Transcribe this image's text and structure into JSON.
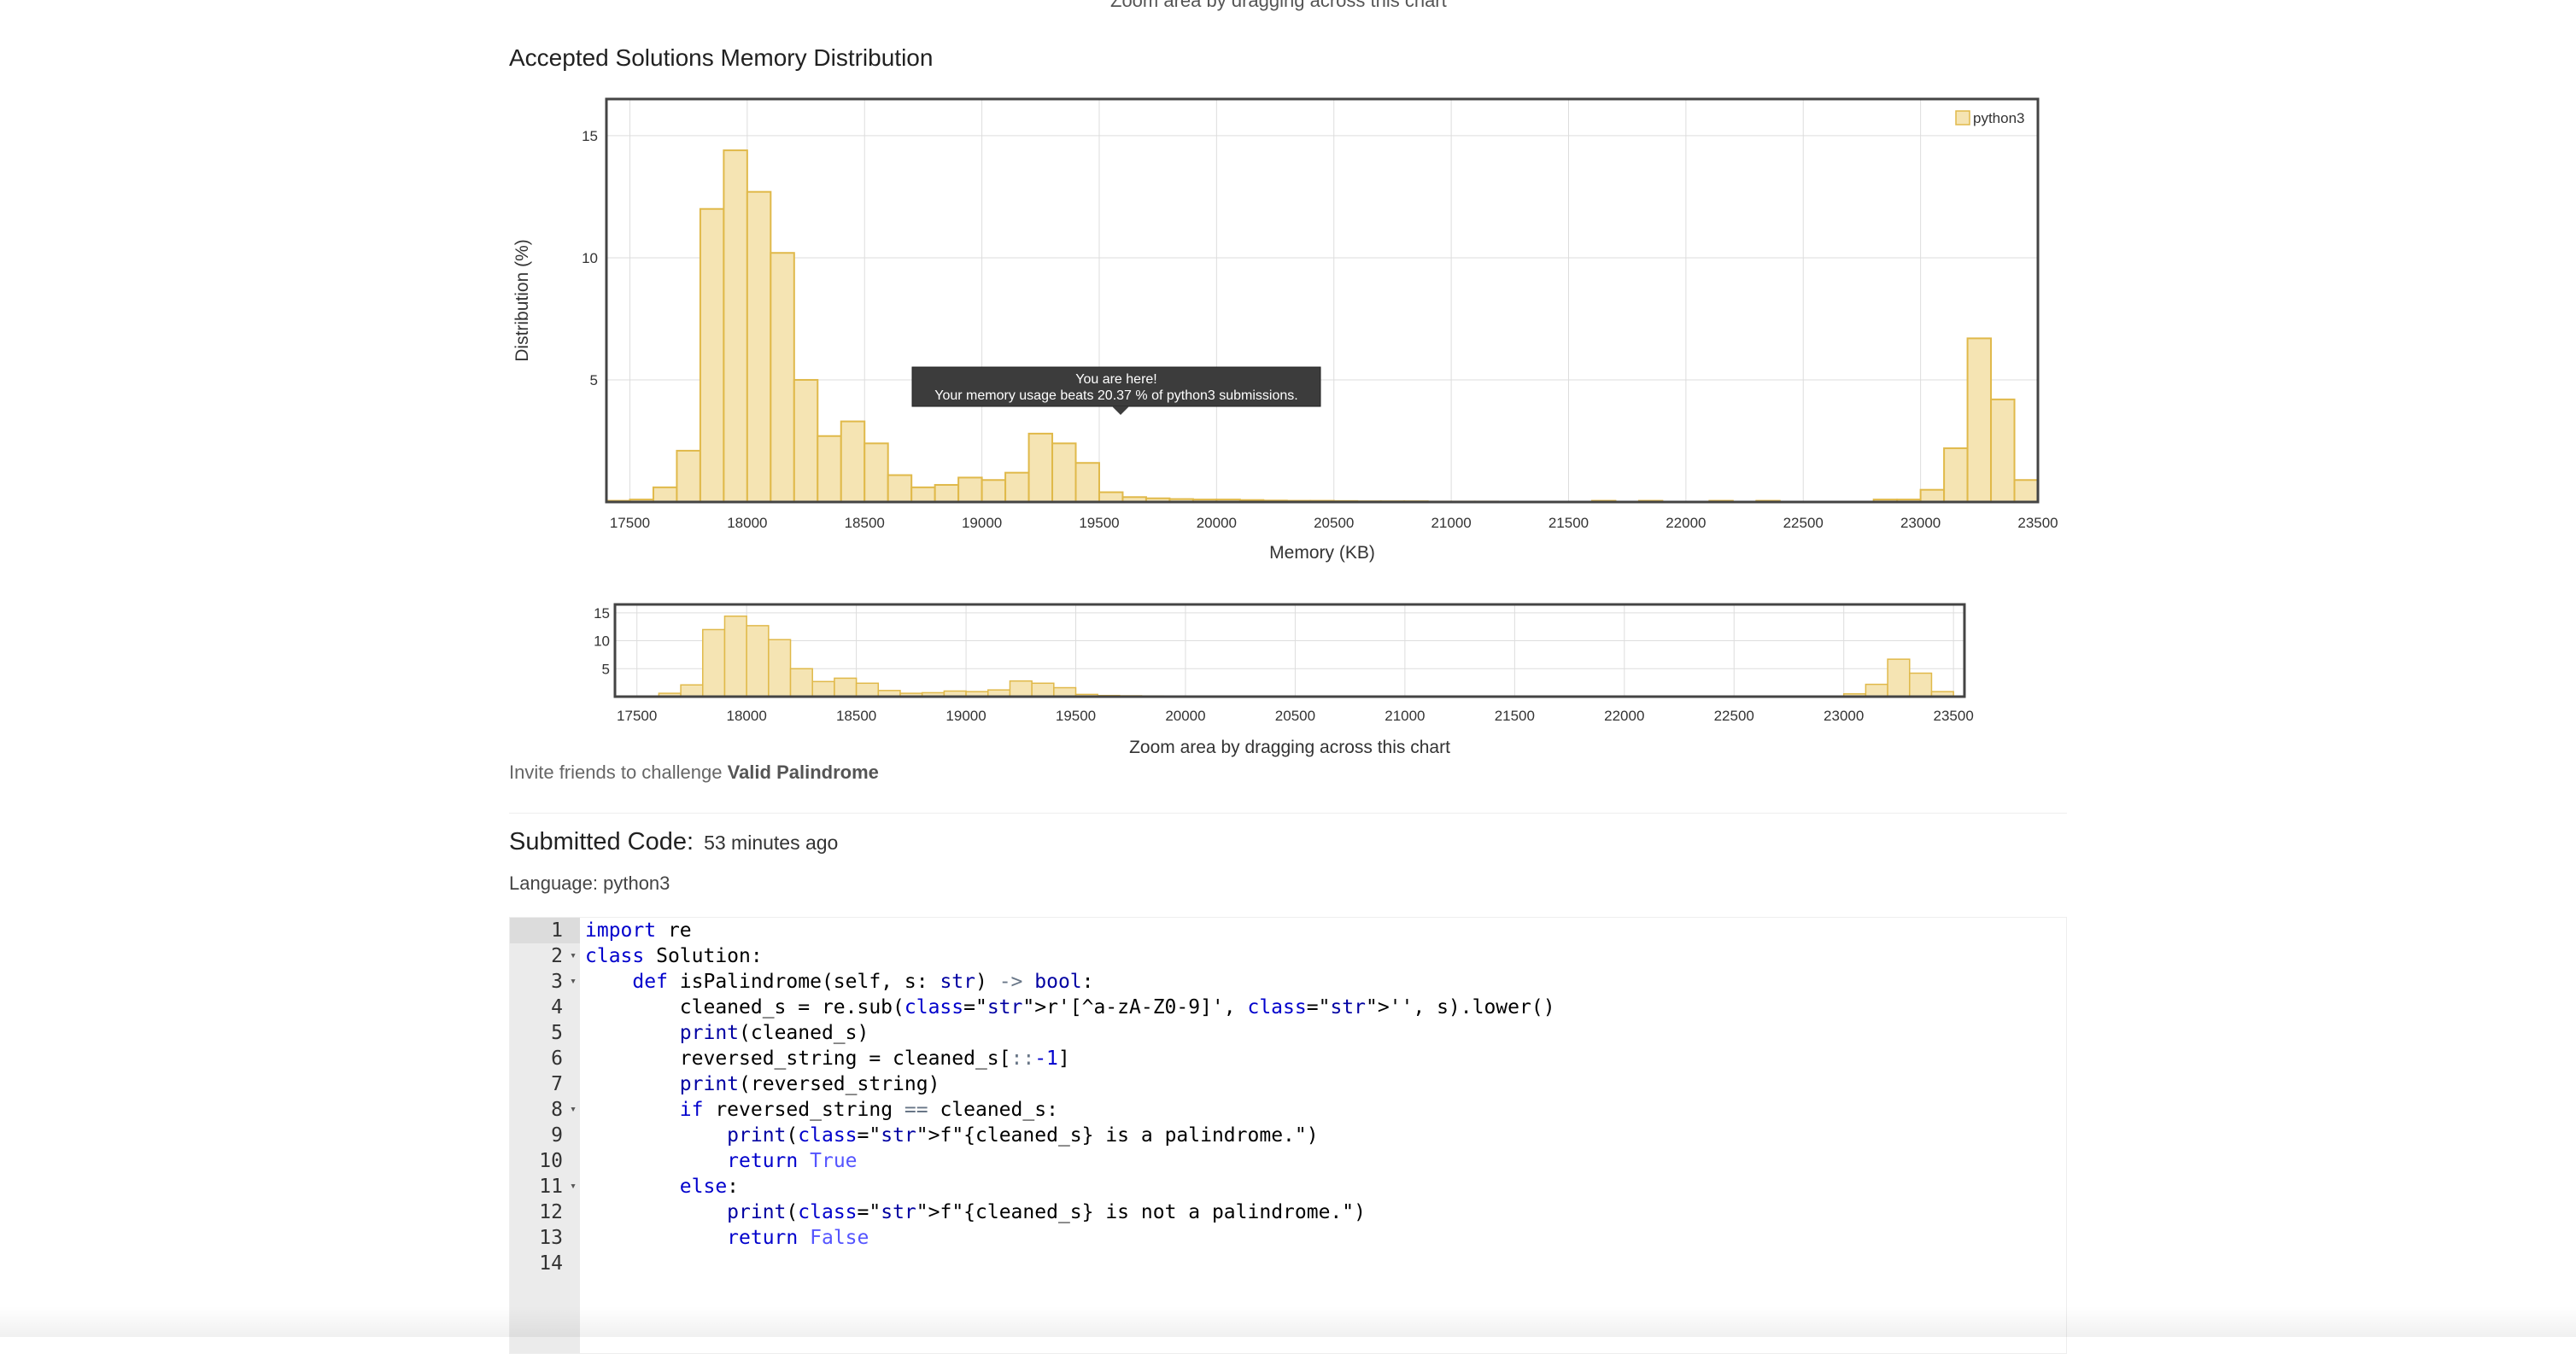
{
  "top_hint": "Zoom area by dragging across this chart",
  "section_title": "Accepted Solutions Memory Distribution",
  "chart_data": [
    {
      "type": "bar",
      "title": "",
      "xlabel": "Memory (KB)",
      "ylabel": "Distribution (%)",
      "xlim": [
        17400,
        23500
      ],
      "ylim": [
        0,
        16.5
      ],
      "x_ticks": [
        "17500",
        "18000",
        "18500",
        "19000",
        "19500",
        "20000",
        "20500",
        "21000",
        "21500",
        "22000",
        "22500",
        "23000",
        "23500"
      ],
      "y_ticks": [
        "5",
        "10",
        "15"
      ],
      "legend": [
        "python3"
      ],
      "legend_position": "top-right",
      "grid": true,
      "bin_width": 100,
      "series": [
        {
          "name": "python3",
          "x": [
            17450,
            17550,
            17650,
            17750,
            17850,
            17950,
            18050,
            18150,
            18250,
            18350,
            18450,
            18550,
            18650,
            18750,
            18850,
            18950,
            19050,
            19150,
            19250,
            19350,
            19450,
            19550,
            19650,
            19750,
            19850,
            19950,
            20050,
            20150,
            20250,
            20350,
            20450,
            20550,
            20650,
            20750,
            20850,
            20950,
            21050,
            21150,
            21650,
            21850,
            22150,
            22350,
            22850,
            22950,
            23050,
            23150,
            23250,
            23350,
            23450
          ],
          "values": [
            0.05,
            0.1,
            0.6,
            2.1,
            12.0,
            14.4,
            12.7,
            10.2,
            5.0,
            2.7,
            3.3,
            2.4,
            1.1,
            0.6,
            0.7,
            1.0,
            0.9,
            1.2,
            2.8,
            2.4,
            1.6,
            0.4,
            0.2,
            0.15,
            0.12,
            0.1,
            0.1,
            0.08,
            0.06,
            0.05,
            0.05,
            0.04,
            0.03,
            0.03,
            0.03,
            0.02,
            0.02,
            0.02,
            0.05,
            0.05,
            0.05,
            0.05,
            0.1,
            0.1,
            0.5,
            2.2,
            6.7,
            4.2,
            0.9
          ]
        }
      ],
      "annotation": {
        "line1": "You are here!",
        "line2": "Your memory usage beats 20.37 % of python3 submissions."
      }
    },
    {
      "type": "bar",
      "title": "",
      "xlabel": "Zoom area by dragging across this chart",
      "ylabel": "",
      "xlim": [
        17400,
        23550
      ],
      "ylim": [
        0,
        16.5
      ],
      "x_ticks": [
        "17500",
        "18000",
        "18500",
        "19000",
        "19500",
        "20000",
        "20500",
        "21000",
        "21500",
        "22000",
        "22500",
        "23000",
        "23500"
      ],
      "y_ticks": [
        "5",
        "10",
        "15"
      ],
      "grid": true
    }
  ],
  "invite": {
    "prefix": "Invite friends to challenge ",
    "problem": "Valid Palindrome"
  },
  "submitted": {
    "label": "Submitted Code:",
    "time": "53 minutes ago"
  },
  "language_line": "Language: python3",
  "code": {
    "line_numbers": [
      "1",
      "2",
      "3",
      "4",
      "5",
      "6",
      "7",
      "8",
      "9",
      "10",
      "11",
      "12",
      "13",
      "14"
    ],
    "fold_lines": [
      2,
      3,
      8,
      11
    ],
    "lines": [
      "import re",
      "class Solution:",
      "    def isPalindrome(self, s: str) -> bool:",
      "        cleaned_s = re.sub(r'[^a-zA-Z0-9]', '', s).lower()",
      "        print(cleaned_s)",
      "        reversed_string = cleaned_s[::-1]",
      "        print(reversed_string)",
      "        if reversed_string == cleaned_s:",
      "            print(f\"{cleaned_s} is a palindrome.\")",
      "            return True",
      "        else:",
      "            print(f\"{cleaned_s} is not a palindrome.\")",
      "            return False",
      ""
    ]
  },
  "colors": {
    "bar_fill": "#f5e4b3",
    "bar_stroke": "#e0b94a",
    "grid": "#dddddd",
    "tooltip_bg": "#3c3c3c"
  }
}
